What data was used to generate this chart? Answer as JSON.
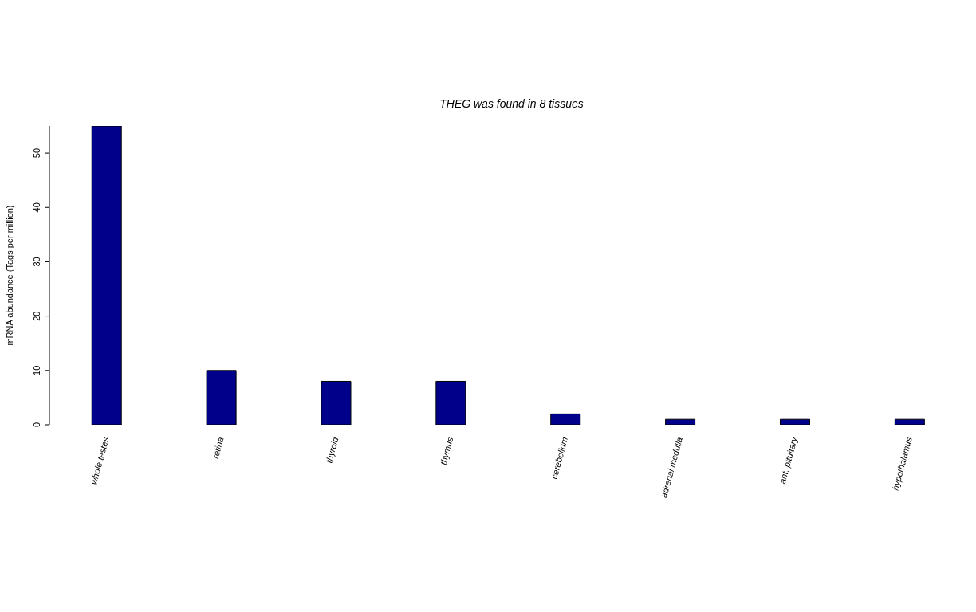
{
  "chart_data": {
    "type": "bar",
    "title": "THEG  was found in  8  tissues",
    "ylabel": "mRNA abundance (Tags per million)",
    "categories": [
      "whole testes",
      "retina",
      "thyroid",
      "thymus",
      "cerebellum",
      "adrenal medulla",
      "ant. pituitary",
      "hypothalamus"
    ],
    "values": [
      55,
      10,
      8,
      8,
      2,
      1,
      1,
      1
    ],
    "color": "#00008b",
    "ylim": [
      0,
      55
    ],
    "yticks": [
      0,
      10,
      20,
      30,
      40,
      50
    ],
    "grid": false,
    "legend": false
  }
}
